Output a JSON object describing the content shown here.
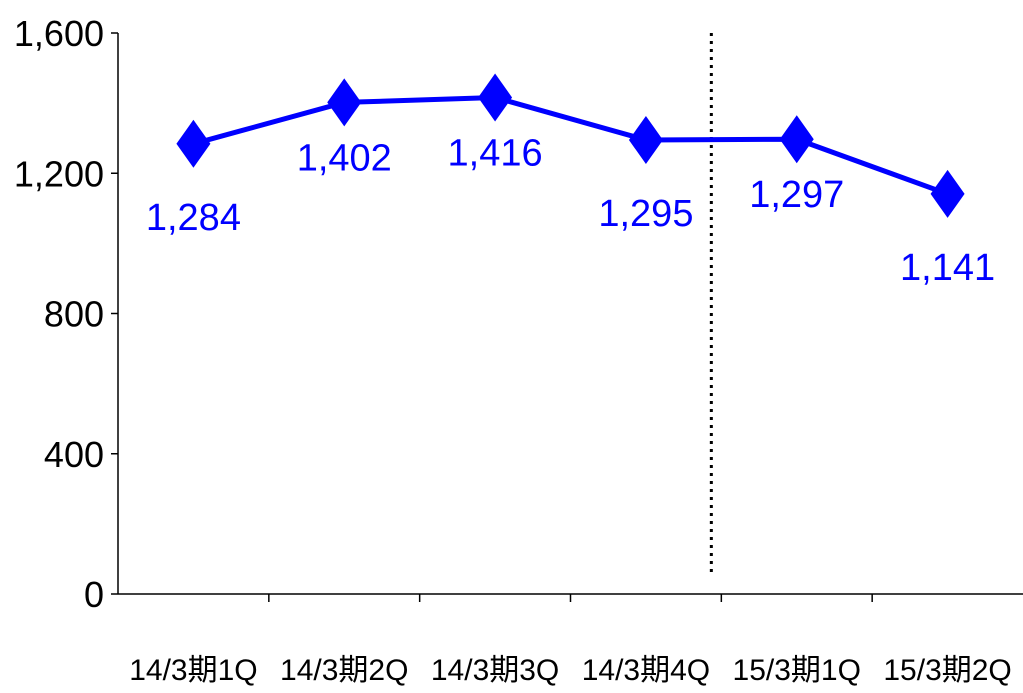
{
  "chart_data": {
    "type": "line",
    "title": "",
    "xlabel": "",
    "ylabel": "",
    "categories": [
      "14/3期1Q",
      "14/3期2Q",
      "14/3期3Q",
      "14/3期4Q",
      "15/3期1Q",
      "15/3期2Q"
    ],
    "series": [
      {
        "values": [
          1284,
          1402,
          1416,
          1295,
          1297,
          1141
        ],
        "data_labels": [
          "1,284",
          "1,402",
          "1,416",
          "1,295",
          "1,297",
          "1,141"
        ],
        "color": "#0000FF",
        "marker": "diamond"
      }
    ],
    "ylim": [
      0,
      1600
    ],
    "yticks": [
      0,
      400,
      800,
      1200,
      1600
    ],
    "ytick_labels": [
      "0",
      "400",
      "800",
      "1,200",
      "1,600"
    ],
    "grid": false,
    "divider_after_category": "14/3期4Q",
    "divider_style": "dotted"
  }
}
